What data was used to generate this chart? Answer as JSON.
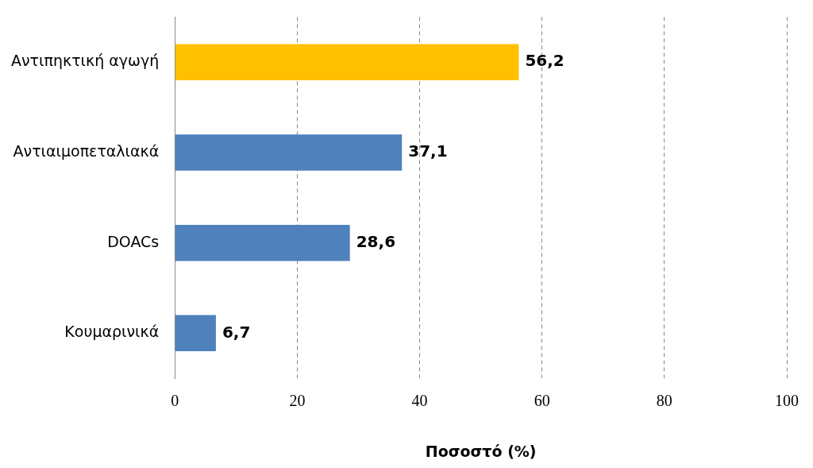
{
  "chart_data": {
    "type": "bar",
    "orientation": "horizontal",
    "xlabel": "Ποσοστό (%)",
    "categories": [
      "Αντιπηκτική αγωγή",
      "Αντιαιμοπεταλιακά",
      "DOACs",
      "Κουμαρινικά"
    ],
    "values": [
      56.2,
      37.1,
      28.6,
      6.7
    ],
    "value_labels": [
      "56,2",
      "37,1",
      "28,6",
      "6,7"
    ],
    "colors": [
      "#ffc000",
      "#4f81bd",
      "#4f81bd",
      "#4f81bd"
    ],
    "xlim": [
      0,
      100
    ],
    "xticks": [
      0,
      20,
      40,
      60,
      80,
      100
    ],
    "grid": "x",
    "legend": false
  }
}
